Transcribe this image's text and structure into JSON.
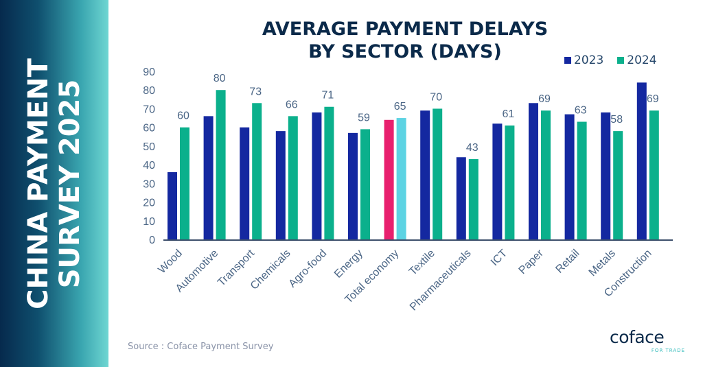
{
  "side_title": [
    "CHINA PAYMENT",
    "SURVEY 2025"
  ],
  "source": "Source : Coface Payment Survey",
  "logo": {
    "name": "coface",
    "tagline": "FOR TRADE"
  },
  "chart_data": {
    "type": "bar",
    "title": [
      "AVERAGE PAYMENT DELAYS",
      "BY SECTOR (DAYS)"
    ],
    "categories": [
      "Wood",
      "Automotive",
      "Transport",
      "Chemicals",
      "Agro-food",
      "Energy",
      "Total economy",
      "Textile",
      "Pharmaceuticals",
      "ICT",
      "Paper",
      "Retail",
      "Metals",
      "Construction"
    ],
    "series": [
      {
        "name": "2023",
        "color": "#1428a0",
        "highlight_color": "#e8206e",
        "values": [
          36,
          66,
          60,
          58,
          68,
          57,
          64,
          69,
          44,
          62,
          73,
          67,
          68,
          84
        ]
      },
      {
        "name": "2024",
        "color": "#0bb08c",
        "highlight_color": "#5dd3e3",
        "values": [
          60,
          80,
          73,
          66,
          71,
          59,
          65,
          70,
          43,
          61,
          69,
          63,
          58,
          69
        ]
      }
    ],
    "highlight_category": "Total economy",
    "data_labels_series": "2024",
    "ylim": [
      0,
      90
    ],
    "yticks": [
      0,
      10,
      20,
      30,
      40,
      50,
      60,
      70,
      80,
      90
    ],
    "grid": false,
    "legend": "top-right"
  }
}
